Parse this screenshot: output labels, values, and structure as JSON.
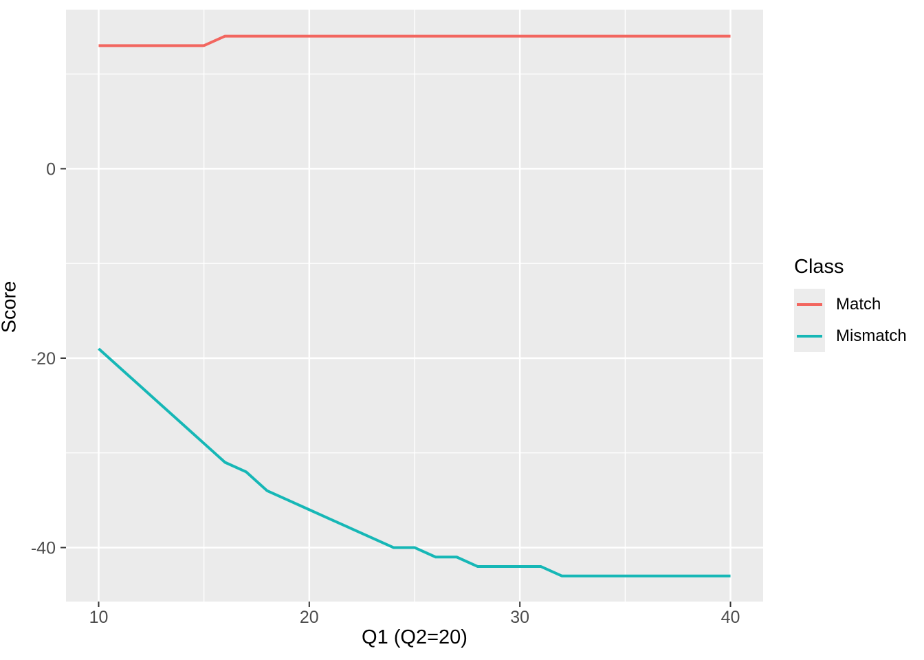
{
  "chart_data": {
    "type": "line",
    "title": "",
    "xlabel": "Q1 (Q2=20)",
    "ylabel": "Score",
    "x": [
      10,
      11,
      12,
      13,
      14,
      15,
      16,
      17,
      18,
      19,
      20,
      21,
      22,
      23,
      24,
      25,
      26,
      27,
      28,
      29,
      30,
      31,
      32,
      33,
      34,
      35,
      36,
      37,
      38,
      39,
      40
    ],
    "series": [
      {
        "name": "Match",
        "color": "#F2665F",
        "values": [
          13,
          13,
          13,
          13,
          13,
          13,
          14,
          14,
          14,
          14,
          14,
          14,
          14,
          14,
          14,
          14,
          14,
          14,
          14,
          14,
          14,
          14,
          14,
          14,
          14,
          14,
          14,
          14,
          14,
          14,
          14
        ]
      },
      {
        "name": "Mismatch",
        "color": "#16B7B6",
        "values": [
          -19,
          -21,
          -23,
          -25,
          -27,
          -29,
          -31,
          -32,
          -34,
          -35,
          -36,
          -37,
          -38,
          -39,
          -40,
          -40,
          -41,
          -41,
          -42,
          -42,
          -42,
          -42,
          -43,
          -43,
          -43,
          -43,
          -43,
          -43,
          -43,
          -43,
          -43
        ]
      }
    ],
    "xlim": [
      8.45,
      41.55
    ],
    "ylim": [
      -45.7,
      16.8
    ],
    "x_major_ticks": [
      10,
      20,
      30,
      40
    ],
    "x_tick_labels": [
      "10",
      "20",
      "30",
      "40"
    ],
    "x_minor_gridlines": [
      15,
      25,
      35
    ],
    "y_major_ticks": [
      0,
      -20,
      -40
    ],
    "y_tick_labels": [
      "0",
      "-20",
      "-40"
    ],
    "y_minor_gridlines": [
      10,
      -10,
      -30
    ],
    "grid": true,
    "panel_bg": "#EBEBEB",
    "gridline_color": "#FFFFFF",
    "tick_color": "#333333",
    "tick_label_color": "#4D4D4D",
    "legend_position": "right"
  },
  "legend": {
    "title": "Class",
    "items": [
      {
        "label": "Match",
        "color": "#F2665F"
      },
      {
        "label": "Mismatch",
        "color": "#16B7B6"
      }
    ]
  },
  "axes": {
    "x_title": "Q1 (Q2=20)",
    "y_title": "Score"
  }
}
